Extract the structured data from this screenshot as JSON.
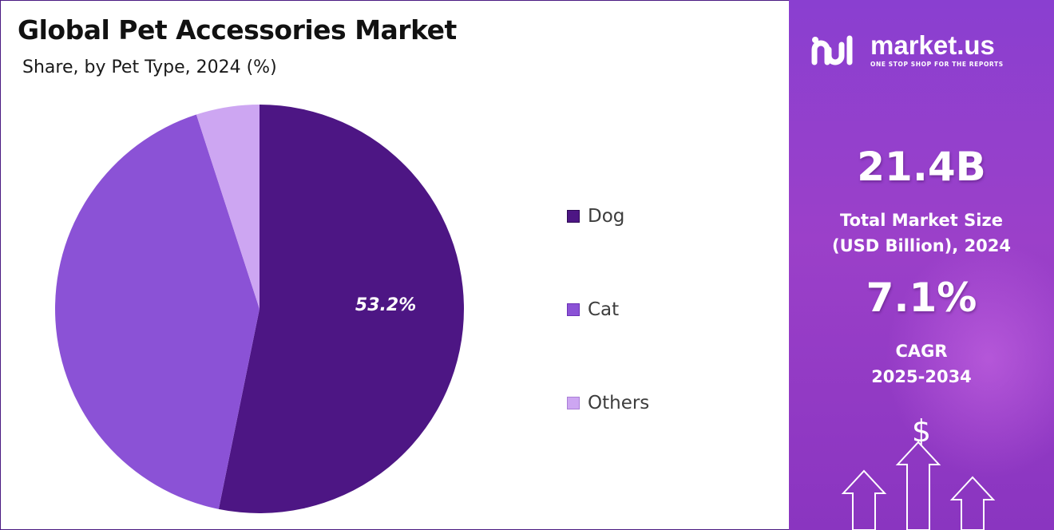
{
  "title": "Global Pet Accessories Market",
  "subtitle": "Share, by Pet Type, 2024 (%)",
  "chart_data": {
    "type": "pie",
    "categories": [
      "Dog",
      "Cat",
      "Others"
    ],
    "values": [
      53.2,
      41.8,
      5.0
    ],
    "colors": [
      "#4d1684",
      "#8b52d6",
      "#cda6f2"
    ],
    "data_labels": [
      "53.2%",
      "",
      ""
    ],
    "legend_position": "right",
    "start_angle_deg": 0,
    "direction": "clockwise"
  },
  "sidebar": {
    "brand_name": "market.us",
    "brand_tagline": "ONE STOP SHOP FOR THE REPORTS",
    "market_size_value": "21.4B",
    "market_size_label_line1": "Total Market Size",
    "market_size_label_line2": "(USD Billion), 2024",
    "cagr_value": "7.1%",
    "cagr_label_line1": "CAGR",
    "cagr_label_line2": "2025-2034",
    "dollar_symbol": "$",
    "accent_color": "#8a3fd0"
  }
}
